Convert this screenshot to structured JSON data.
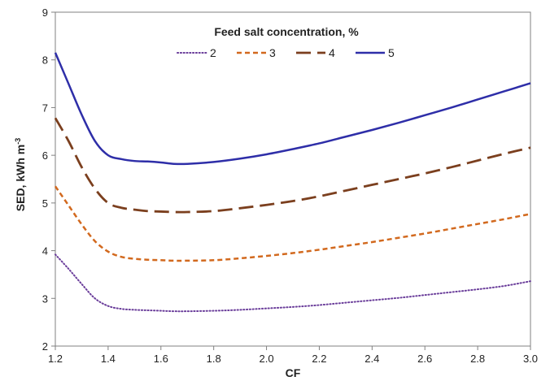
{
  "chart_data": {
    "type": "line",
    "xlabel": "CF",
    "ylabel": "SED, kWh m",
    "ylabel_superscript": "-3",
    "xlim": [
      1.2,
      3.0
    ],
    "ylim": [
      2,
      9
    ],
    "x_ticks": [
      "1.2",
      "1.4",
      "1.6",
      "1.8",
      "2.0",
      "2.2",
      "2.4",
      "2.6",
      "2.8",
      "3.0"
    ],
    "y_ticks": [
      "2",
      "3",
      "4",
      "5",
      "6",
      "7",
      "8",
      "9"
    ],
    "grid": false,
    "legend": {
      "title": "Feed salt concentration, %",
      "placement": "top-center",
      "columns": 4
    },
    "x": [
      1.2,
      1.25,
      1.3,
      1.35,
      1.4,
      1.45,
      1.5,
      1.55,
      1.6,
      1.65,
      1.7,
      1.8,
      1.9,
      2.0,
      2.1,
      2.2,
      2.3,
      2.4,
      2.5,
      2.6,
      2.7,
      2.8,
      2.9,
      3.0
    ],
    "series": [
      {
        "name": "2",
        "color": "#6a3d9a",
        "dash": "dotted",
        "values": [
          3.92,
          3.62,
          3.3,
          3.0,
          2.84,
          2.78,
          2.76,
          2.75,
          2.74,
          2.73,
          2.73,
          2.74,
          2.76,
          2.79,
          2.82,
          2.86,
          2.91,
          2.96,
          3.01,
          3.07,
          3.13,
          3.19,
          3.26,
          3.36
        ]
      },
      {
        "name": "3",
        "color": "#d2691e",
        "dash": "short-dash",
        "values": [
          5.35,
          4.95,
          4.55,
          4.2,
          3.98,
          3.87,
          3.83,
          3.81,
          3.8,
          3.79,
          3.79,
          3.8,
          3.84,
          3.89,
          3.95,
          4.02,
          4.1,
          4.18,
          4.27,
          4.36,
          4.46,
          4.56,
          4.66,
          4.77
        ]
      },
      {
        "name": "4",
        "color": "#7b3f1e",
        "dash": "long-dash",
        "values": [
          6.78,
          6.3,
          5.75,
          5.3,
          5.0,
          4.9,
          4.86,
          4.83,
          4.82,
          4.81,
          4.81,
          4.83,
          4.89,
          4.96,
          5.04,
          5.14,
          5.26,
          5.38,
          5.5,
          5.62,
          5.75,
          5.89,
          6.03,
          6.16
        ]
      },
      {
        "name": "5",
        "color": "#2e2ea8",
        "dash": "solid",
        "values": [
          8.15,
          7.5,
          6.85,
          6.3,
          6.0,
          5.92,
          5.88,
          5.87,
          5.85,
          5.82,
          5.82,
          5.86,
          5.93,
          6.02,
          6.13,
          6.25,
          6.39,
          6.53,
          6.68,
          6.84,
          7.0,
          7.17,
          7.34,
          7.51
        ]
      }
    ]
  }
}
